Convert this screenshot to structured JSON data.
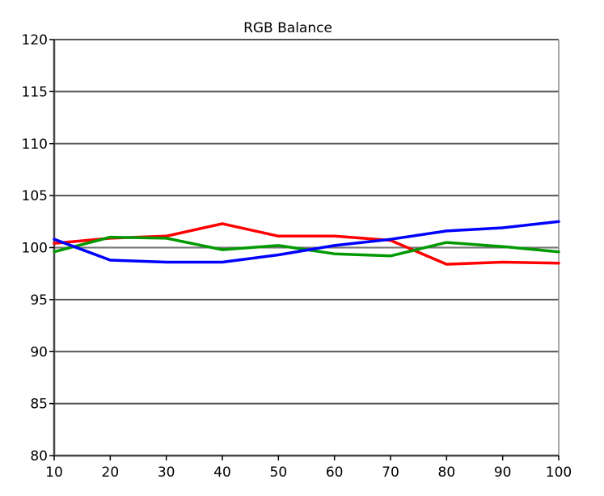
{
  "chart_data": {
    "type": "line",
    "title": "RGB Balance",
    "xlabel": "",
    "ylabel": "",
    "x": [
      10,
      20,
      30,
      40,
      50,
      60,
      70,
      80,
      90,
      100
    ],
    "xlim": [
      10,
      100
    ],
    "ylim": [
      80,
      120
    ],
    "xticks": [
      "10",
      "20",
      "30",
      "40",
      "50",
      "60",
      "70",
      "80",
      "90",
      "100"
    ],
    "yticks": [
      "80",
      "85",
      "90",
      "95",
      "100",
      "105",
      "110",
      "115",
      "120"
    ],
    "grid": "horizontal",
    "reference_line": 100,
    "series": [
      {
        "color": "#ff0000",
        "values": [
          100.4,
          100.9,
          101.1,
          102.3,
          101.1,
          101.1,
          100.7,
          98.4,
          98.6,
          98.5
        ]
      },
      {
        "color": "#009900",
        "values": [
          99.6,
          101.0,
          100.9,
          99.8,
          100.2,
          99.4,
          99.2,
          100.5,
          100.1,
          99.6
        ]
      },
      {
        "color": "#0000ff",
        "values": [
          100.8,
          98.8,
          98.6,
          98.6,
          99.3,
          100.2,
          100.8,
          101.6,
          101.9,
          102.5
        ]
      }
    ]
  }
}
